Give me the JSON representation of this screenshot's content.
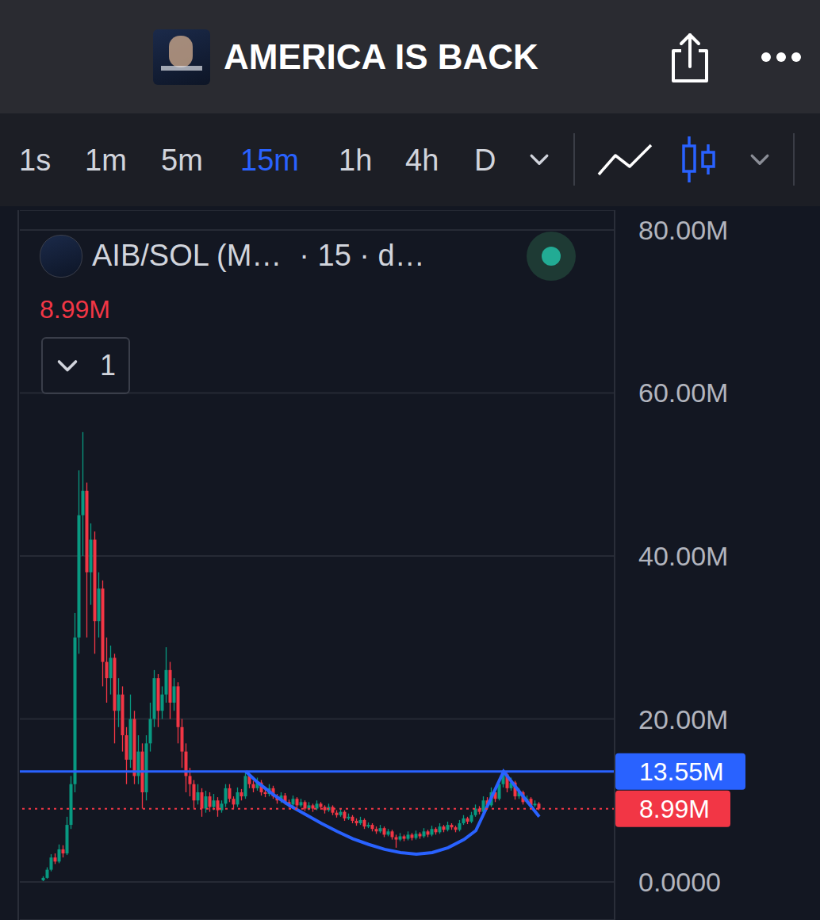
{
  "header": {
    "title": "AMERICA IS BACK"
  },
  "toolbar": {
    "intervals": [
      "1s",
      "1m",
      "5m",
      "15m",
      "1h",
      "4h",
      "D"
    ],
    "selected": "15m"
  },
  "chart_data": {
    "type": "candlestick",
    "title": "AIB/SOL (M…",
    "subtitle": "· 15 · d…",
    "legend_value": "8.99M",
    "pane_count": "1",
    "grid": true,
    "tick_labels": "y",
    "xlim": [
      -6,
      144
    ],
    "ylim": [
      -4.67,
      82.43
    ],
    "yticks": [
      {
        "value": 0,
        "label": "0.0000"
      },
      {
        "value": 20,
        "label": "20.00M"
      },
      {
        "value": 40,
        "label": "40.00M"
      },
      {
        "value": 60,
        "label": "60.00M"
      },
      {
        "value": 80,
        "label": "80.00M"
      }
    ],
    "x": [
      0,
      1,
      2,
      3,
      4,
      5,
      6,
      7,
      8,
      9,
      10,
      11,
      12,
      13,
      14,
      15,
      16,
      17,
      18,
      19,
      20,
      21,
      22,
      23,
      24,
      25,
      26,
      27,
      28,
      29,
      30,
      31,
      32,
      33,
      34,
      35,
      36,
      37,
      38,
      39,
      40,
      41,
      42,
      43,
      44,
      45,
      46,
      47,
      48,
      49,
      50,
      51,
      52,
      53,
      54,
      55,
      56,
      57,
      58,
      59,
      60,
      61,
      62,
      63,
      64,
      65,
      66,
      67,
      68,
      69,
      70,
      71,
      72,
      73,
      74,
      75,
      76,
      77,
      78,
      79,
      80,
      81,
      82,
      83,
      84,
      85,
      86,
      87,
      88,
      89,
      90,
      91,
      92,
      93,
      94,
      95,
      96,
      97,
      98,
      99,
      100,
      101,
      102,
      103,
      104,
      105,
      106,
      107,
      108,
      109,
      110,
      111,
      112,
      113,
      114,
      115,
      116,
      117,
      118,
      119,
      120,
      121,
      122,
      123,
      124,
      125
    ],
    "open": [
      0.2,
      0.5,
      1.5,
      3.0,
      2.5,
      4.0,
      3.5,
      7.0,
      12.0,
      30.0,
      45.0,
      48.0,
      38.0,
      42.0,
      32.0,
      36.0,
      27.0,
      25.0,
      27.5,
      21.0,
      23.0,
      18.0,
      15.0,
      20.0,
      13.0,
      16.0,
      11.0,
      17.0,
      20.0,
      25.0,
      21.0,
      23.0,
      26.0,
      22.0,
      24.0,
      19.0,
      16.0,
      13.0,
      12.0,
      10.0,
      11.0,
      9.0,
      10.5,
      9.2,
      10.0,
      8.8,
      9.6,
      11.5,
      10.2,
      9.5,
      11.0,
      10.5,
      13.0,
      12.0,
      11.5,
      12.2,
      11.0,
      10.8,
      11.5,
      10.5,
      10.0,
      10.6,
      9.8,
      9.5,
      10.2,
      9.4,
      9.8,
      9.0,
      9.4,
      9.0,
      9.6,
      9.2,
      8.8,
      9.2,
      8.5,
      8.2,
      8.6,
      7.8,
      8.0,
      7.5,
      7.2,
      7.6,
      6.8,
      7.0,
      6.5,
      6.2,
      6.6,
      5.8,
      6.2,
      5.5,
      5.2,
      5.6,
      5.3,
      5.8,
      5.4,
      5.9,
      5.6,
      6.2,
      5.8,
      6.5,
      6.1,
      6.8,
      6.4,
      7.0,
      6.7,
      6.4,
      7.2,
      7.8,
      7.4,
      8.2,
      9.0,
      8.6,
      10.0,
      9.4,
      11.0,
      10.2,
      12.0,
      13.2,
      11.5,
      12.2,
      10.5,
      11.0,
      9.8,
      10.2,
      9.4,
      9.6
    ],
    "high": [
      0.7,
      1.8,
      3.4,
      3.5,
      4.6,
      4.5,
      8.0,
      13.0,
      33.0,
      50.5,
      55.2,
      49.0,
      44.0,
      43.0,
      38.0,
      37.0,
      30.0,
      29.0,
      28.0,
      25.0,
      24.0,
      19.0,
      23.0,
      21.0,
      18.0,
      17.0,
      18.0,
      22.0,
      26.0,
      25.5,
      24.0,
      28.8,
      27.0,
      25.0,
      24.5,
      20.0,
      17.0,
      14.0,
      12.5,
      12.0,
      11.5,
      11.2,
      11.0,
      10.8,
      10.4,
      10.0,
      12.0,
      12.0,
      10.5,
      11.6,
      11.4,
      13.55,
      13.3,
      12.4,
      12.8,
      12.5,
      11.4,
      12.0,
      11.8,
      10.8,
      11.0,
      10.9,
      10.1,
      10.6,
      10.4,
      10.2,
      10.0,
      9.8,
      9.6,
      10.0,
      9.8,
      9.4,
      9.6,
      9.4,
      8.8,
      9.0,
      8.8,
      8.4,
      8.2,
      7.8,
      8.0,
      7.8,
      7.3,
      7.2,
      6.8,
      7.0,
      6.8,
      6.5,
      6.4,
      5.8,
      6.0,
      5.8,
      6.2,
      6.0,
      6.3,
      6.1,
      6.6,
      6.4,
      6.9,
      6.7,
      7.2,
      7.0,
      7.4,
      7.2,
      6.9,
      7.6,
      8.2,
      8.0,
      8.6,
      9.5,
      9.3,
      10.5,
      10.4,
      11.6,
      11.3,
      12.6,
      13.55,
      13.4,
      12.8,
      12.4,
      11.5,
      11.2,
      10.6,
      10.4,
      10.0,
      9.8
    ],
    "low": [
      0.1,
      0.4,
      1.3,
      2.2,
      2.3,
      3.0,
      3.3,
      6.5,
      11.0,
      28.0,
      40.0,
      30.0,
      34.0,
      28.0,
      30.0,
      24.0,
      22.0,
      23.0,
      17.0,
      19.0,
      16.0,
      12.0,
      14.0,
      12.0,
      12.0,
      9.0,
      10.0,
      16.0,
      19.0,
      19.0,
      20.0,
      22.0,
      20.0,
      21.0,
      17.0,
      14.0,
      11.0,
      10.5,
      9.0,
      9.5,
      8.0,
      8.5,
      8.6,
      8.8,
      8.0,
      8.5,
      9.2,
      9.8,
      9.0,
      9.2,
      10.0,
      10.2,
      11.5,
      11.0,
      11.2,
      10.6,
      10.4,
      10.5,
      10.2,
      9.6,
      9.7,
      9.5,
      9.1,
      9.3,
      9.0,
      9.2,
      8.7,
      8.8,
      8.6,
      8.8,
      8.9,
      8.4,
      8.6,
      8.2,
      7.9,
      8.0,
      7.5,
      7.6,
      7.2,
      6.9,
      7.0,
      6.5,
      6.6,
      6.2,
      5.9,
      6.0,
      5.5,
      5.6,
      5.2,
      4.2,
      5.0,
      5.0,
      5.1,
      5.1,
      5.2,
      5.3,
      5.4,
      5.5,
      5.6,
      5.8,
      5.9,
      6.1,
      6.2,
      6.4,
      6.1,
      6.2,
      7.0,
      7.1,
      7.2,
      8.0,
      8.3,
      8.4,
      9.0,
      9.2,
      9.8,
      10.0,
      11.6,
      11.0,
      11.2,
      10.1,
      10.2,
      9.5,
      9.6,
      9.1,
      9.2,
      8.8
    ],
    "close": [
      0.5,
      1.5,
      3.0,
      2.5,
      4.0,
      3.5,
      7.0,
      12.0,
      30.0,
      45.0,
      48.0,
      38.0,
      42.0,
      32.0,
      36.0,
      27.0,
      25.0,
      27.5,
      21.0,
      23.0,
      18.0,
      15.0,
      20.0,
      13.0,
      16.0,
      11.0,
      17.0,
      20.0,
      25.0,
      21.0,
      23.0,
      26.0,
      22.0,
      24.0,
      19.0,
      16.0,
      13.0,
      12.0,
      10.0,
      11.0,
      9.0,
      10.5,
      9.2,
      10.0,
      8.8,
      9.6,
      11.5,
      10.2,
      9.5,
      11.0,
      10.5,
      13.0,
      12.0,
      11.5,
      12.2,
      11.0,
      10.8,
      11.5,
      10.5,
      10.0,
      10.6,
      9.8,
      9.5,
      10.2,
      9.4,
      9.8,
      9.0,
      9.4,
      9.0,
      9.6,
      9.2,
      8.8,
      9.2,
      8.5,
      8.2,
      8.6,
      7.8,
      8.0,
      7.5,
      7.2,
      7.6,
      6.8,
      7.0,
      6.5,
      6.2,
      6.6,
      5.8,
      6.2,
      5.5,
      5.2,
      5.6,
      5.3,
      5.8,
      5.4,
      5.9,
      5.6,
      6.2,
      5.8,
      6.5,
      6.1,
      6.8,
      6.4,
      7.0,
      6.7,
      6.4,
      7.2,
      7.8,
      7.4,
      8.2,
      9.0,
      8.6,
      10.0,
      9.4,
      11.0,
      10.2,
      12.0,
      13.2,
      11.5,
      12.2,
      10.5,
      11.0,
      9.8,
      10.2,
      9.4,
      9.6,
      8.99
    ],
    "annotations": [
      {
        "text": "13.55M",
        "value": 13.55,
        "color": "#2962ff",
        "line_style": "solid"
      },
      {
        "text": "8.99M",
        "value": 8.99,
        "color": "#f23645",
        "line_style": "dotted"
      }
    ],
    "drawing": {
      "x": [
        51,
        54,
        58,
        62,
        66,
        70,
        74,
        78,
        82,
        86,
        90,
        94,
        98,
        102,
        106,
        109,
        116,
        125
      ],
      "values": [
        13.55,
        12.2,
        10.7,
        9.4,
        8.3,
        7.2,
        6.2,
        5.3,
        4.6,
        4.0,
        3.6,
        3.4,
        3.6,
        4.2,
        5.2,
        6.3,
        13.55,
        8.0
      ],
      "color": "#2962ff",
      "line_style": "solid"
    }
  }
}
